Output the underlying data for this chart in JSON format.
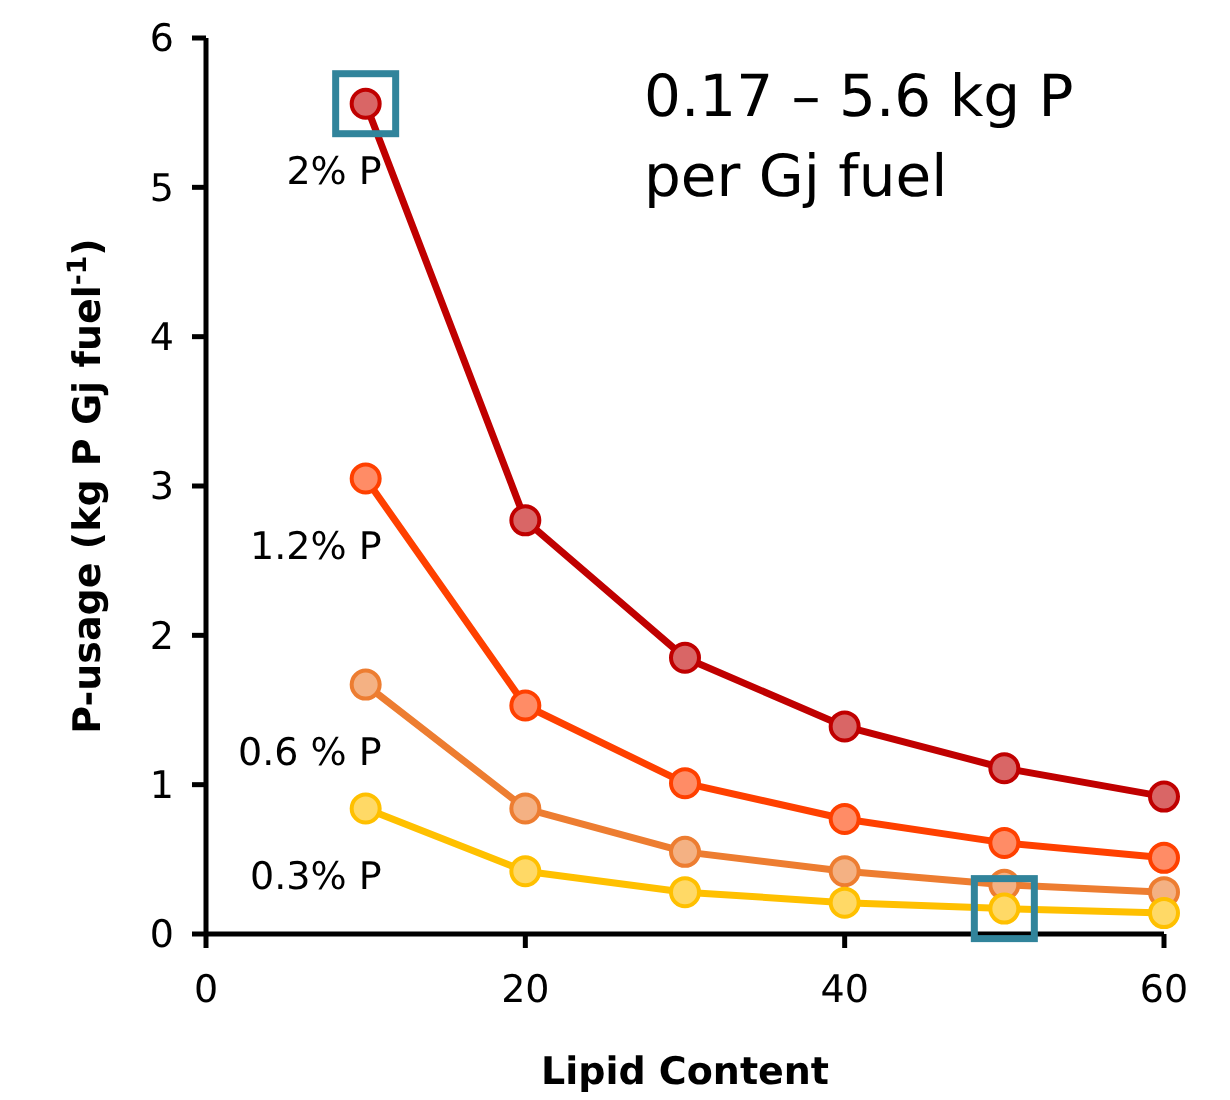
{
  "chart_data": {
    "type": "line",
    "xlabel": "Lipid Content",
    "ylabel": "P-usage (kg P Gj fuel$^{-1}$)",
    "annotations": [
      "0.17 – 5.6 kg P per Gj fuel"
    ],
    "x": [
      10,
      20,
      30,
      40,
      50,
      60
    ],
    "series": [
      {
        "name": "2% P",
        "color": "#c00000",
        "values": [
          5.56,
          2.77,
          1.85,
          1.39,
          1.11,
          0.92
        ]
      },
      {
        "name": "1.2% P",
        "color": "#ff4000",
        "values": [
          3.05,
          1.53,
          1.01,
          0.77,
          0.61,
          0.51
        ]
      },
      {
        "name": "0.6 % P",
        "color": "#ed7d31",
        "values": [
          1.67,
          0.84,
          0.55,
          0.42,
          0.33,
          0.28
        ]
      },
      {
        "name": "0.3% P",
        "color": "#ffc000",
        "values": [
          0.84,
          0.42,
          0.28,
          0.21,
          0.17,
          0.14
        ]
      }
    ],
    "xlim": [
      0,
      60
    ],
    "xticks": [
      0,
      20,
      40,
      60
    ],
    "ylim": [
      0,
      6
    ],
    "yticks": [
      0,
      1,
      2,
      3,
      4,
      5,
      6
    ],
    "grid": false,
    "marker": "circle",
    "line_style": "solid"
  }
}
